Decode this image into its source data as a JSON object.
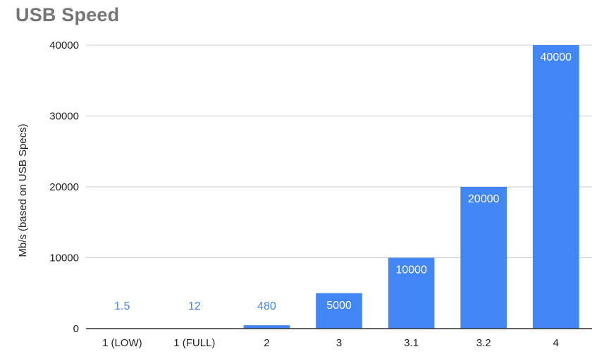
{
  "chart_data": {
    "type": "bar",
    "title": "USB Speed",
    "xlabel": "",
    "ylabel": "Mb/s (based on USB Specs)",
    "categories": [
      "1 (LOW)",
      "1 (FULL)",
      "2",
      "3",
      "3.1",
      "3.2",
      "4"
    ],
    "values": [
      1.5,
      12,
      480,
      5000,
      10000,
      20000,
      40000
    ],
    "data_labels": [
      "1.5",
      "12",
      "480",
      "5000",
      "10000",
      "20000",
      "40000"
    ],
    "y_ticks": [
      0,
      10000,
      20000,
      30000,
      40000
    ],
    "y_tick_labels": [
      "0",
      "10000",
      "20000",
      "30000",
      "40000"
    ],
    "ylim": [
      0,
      40000
    ],
    "grid": true,
    "legend": "none",
    "colors": {
      "bar": "#4285F4",
      "label_inside": "#ffffff",
      "label_outside": "#4285F4",
      "gridline": "#cccccc",
      "baseline": "#333333",
      "title": "#757575"
    }
  }
}
